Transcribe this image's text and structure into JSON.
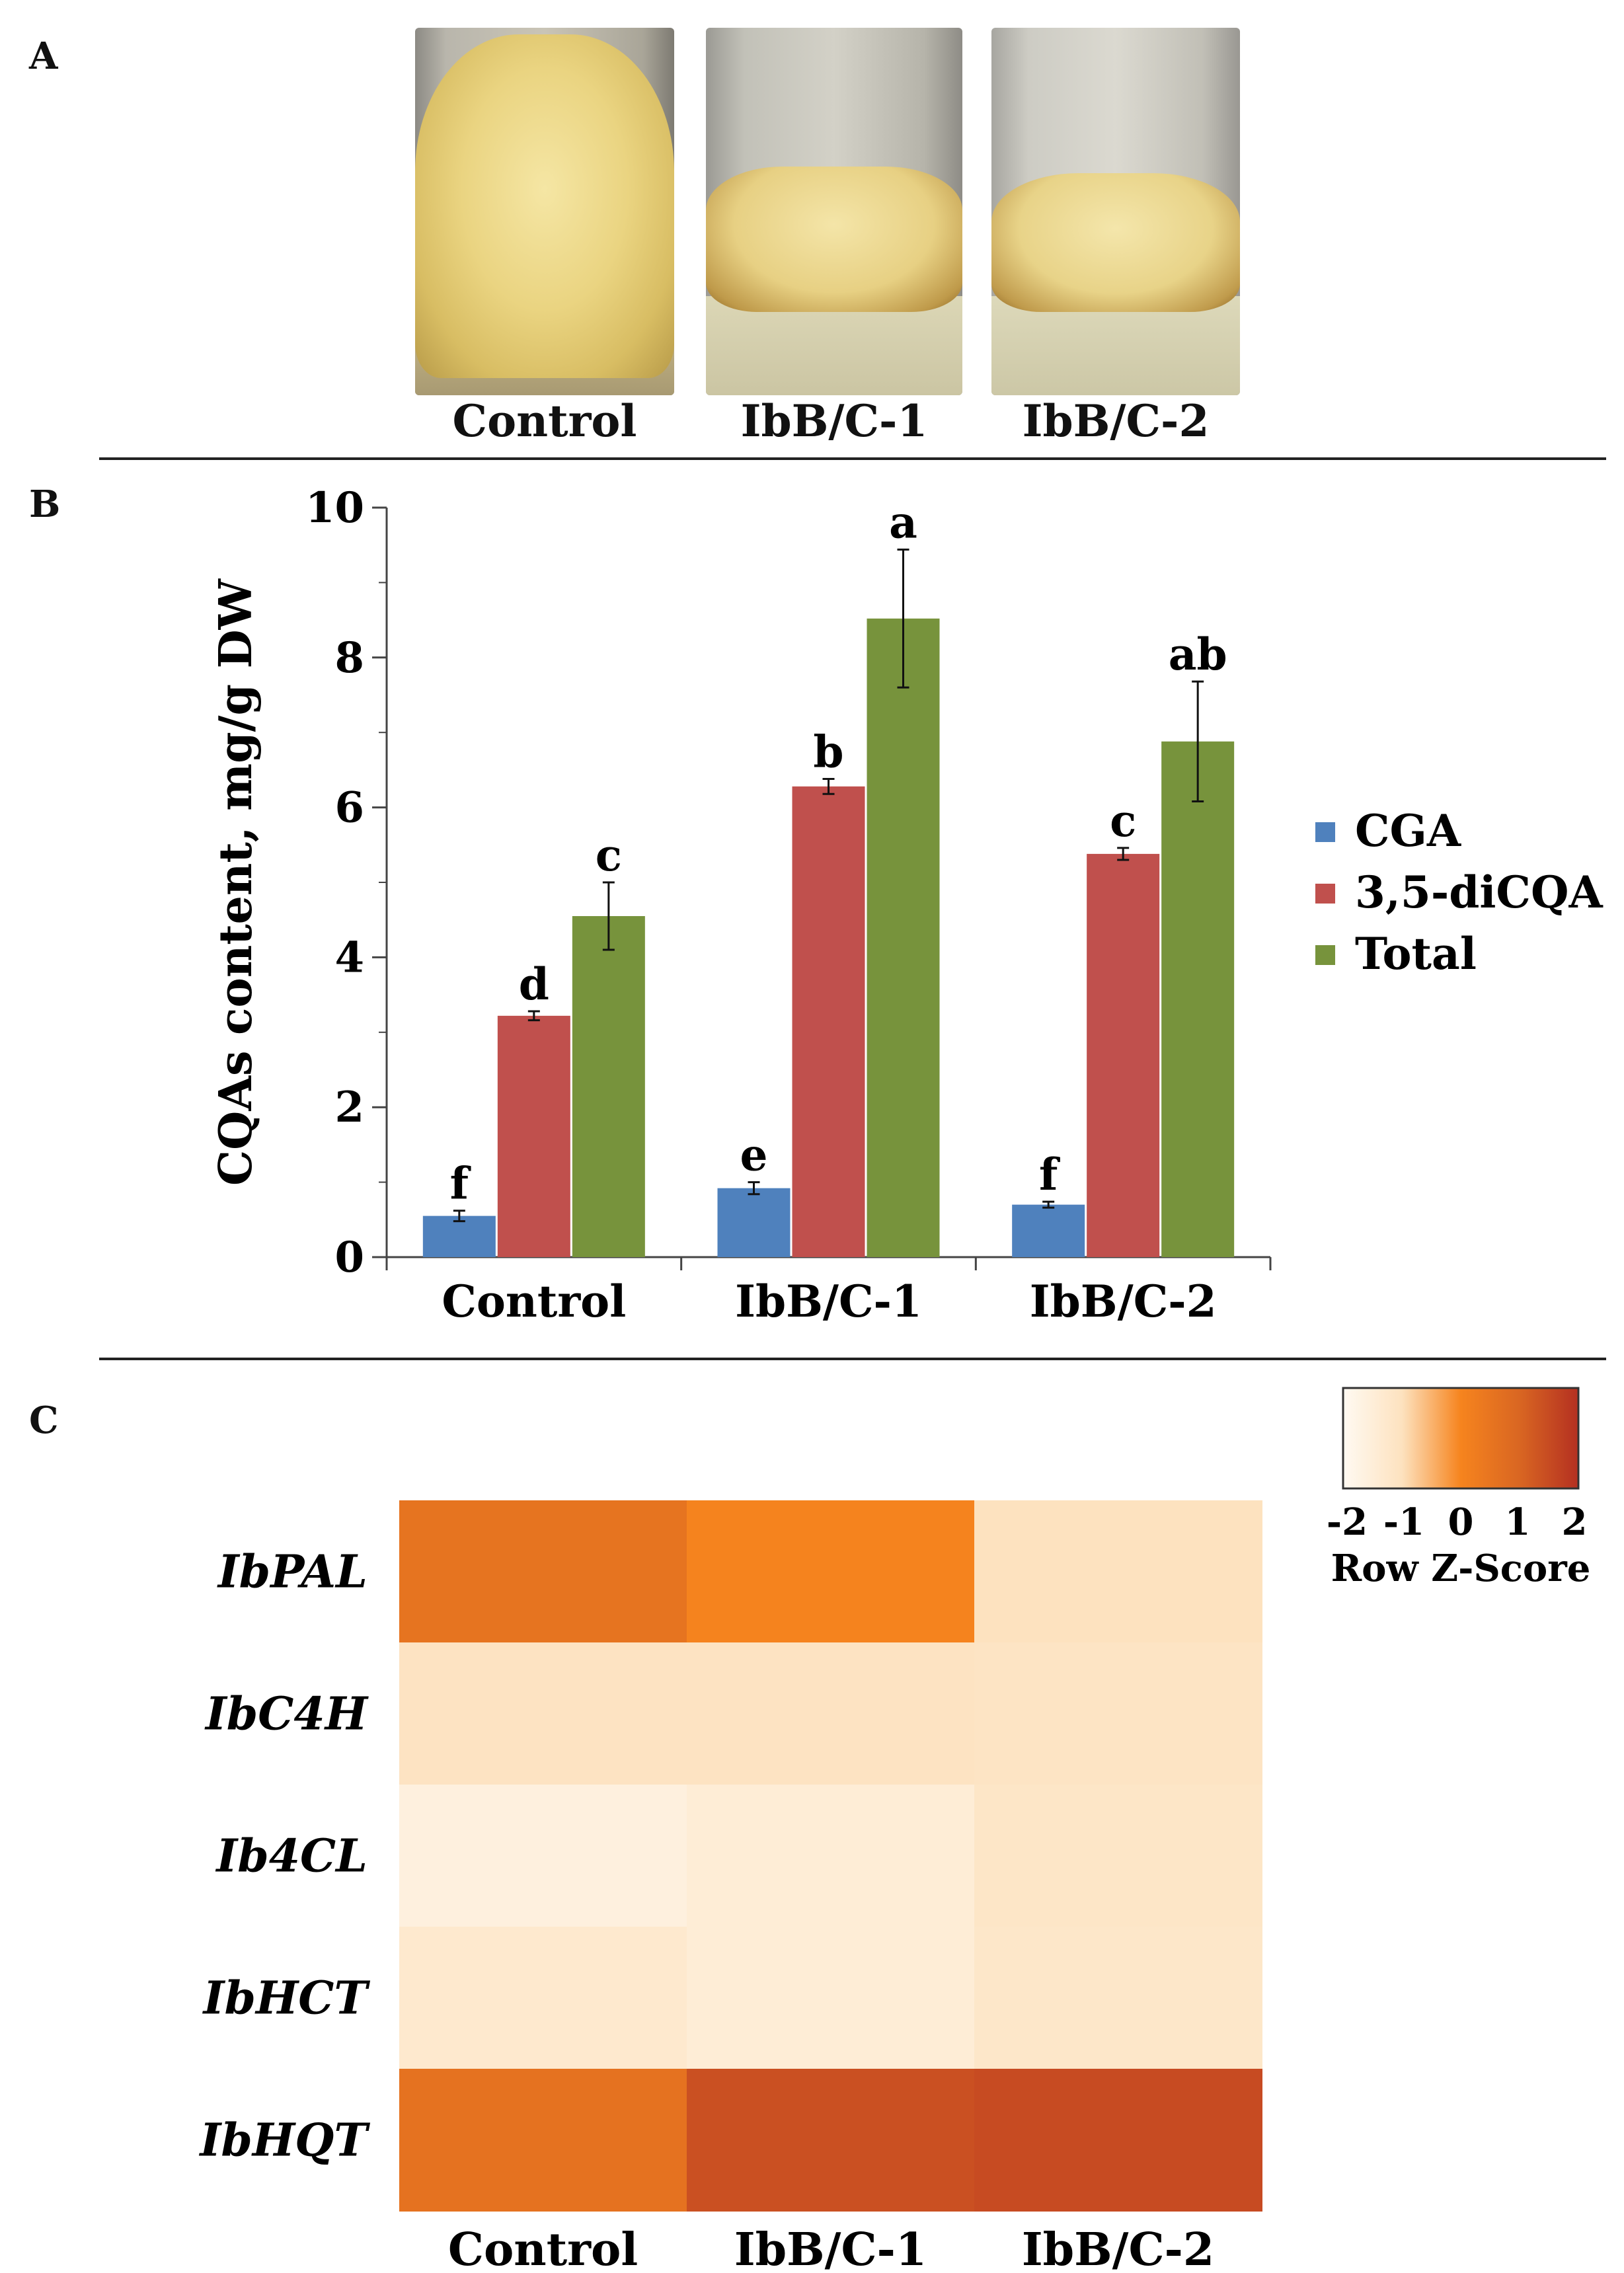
{
  "panel_a": {
    "letter": "A",
    "photos": [
      {
        "label": "Control"
      },
      {
        "label": "IbB/C-1"
      },
      {
        "label": "IbB/C-2"
      }
    ]
  },
  "panel_b": {
    "letter": "B"
  },
  "panel_c": {
    "letter": "C"
  },
  "chart_data": [
    {
      "type": "bar",
      "title": "",
      "xlabel": "",
      "ylabel": "CQAs content, mg/g DW",
      "ylim": [
        0,
        10
      ],
      "yticks": [
        0,
        2,
        4,
        6,
        8,
        10
      ],
      "categories": [
        "Control",
        "IbB/C-1",
        "IbB/C-2"
      ],
      "legend_position": "right",
      "series": [
        {
          "name": "CGA",
          "color": "#4f81bd",
          "values": [
            0.55,
            0.92,
            0.7
          ],
          "errors": [
            0.07,
            0.08,
            0.04
          ],
          "letters": [
            "f",
            "e",
            "f"
          ]
        },
        {
          "name": "3,5-diCQA",
          "color": "#c0504d",
          "values": [
            3.22,
            6.28,
            5.38
          ],
          "errors": [
            0.06,
            0.1,
            0.08
          ],
          "letters": [
            "d",
            "b",
            "c"
          ]
        },
        {
          "name": "Total",
          "color": "#77933c",
          "values": [
            4.55,
            8.52,
            6.88
          ],
          "errors": [
            0.45,
            0.92,
            0.8
          ],
          "letters": [
            "c",
            "a",
            "ab"
          ]
        }
      ]
    },
    {
      "type": "heatmap",
      "title": "",
      "rows": [
        "IbPAL",
        "IbC4H",
        "Ib4CL",
        "IbHCT",
        "IbHQT"
      ],
      "columns": [
        "Control",
        "IbB/C-1",
        "IbB/C-2"
      ],
      "z_scores": [
        [
          0.55,
          0.05,
          -1.0
        ],
        [
          -1.05,
          -1.05,
          -1.1
        ],
        [
          -1.6,
          -1.45,
          -1.15
        ],
        [
          -1.3,
          -1.45,
          -1.2
        ],
        [
          0.6,
          1.4,
          1.5
        ]
      ],
      "colorbar": {
        "label": "Row Z-Score",
        "range": [
          -2,
          2
        ],
        "ticks": [
          "-2",
          "-1",
          "0",
          "1",
          "2"
        ],
        "colors": [
          "#fffaf2",
          "#fde2bf",
          "#f6841e",
          "#d96622",
          "#b43021"
        ]
      }
    }
  ]
}
